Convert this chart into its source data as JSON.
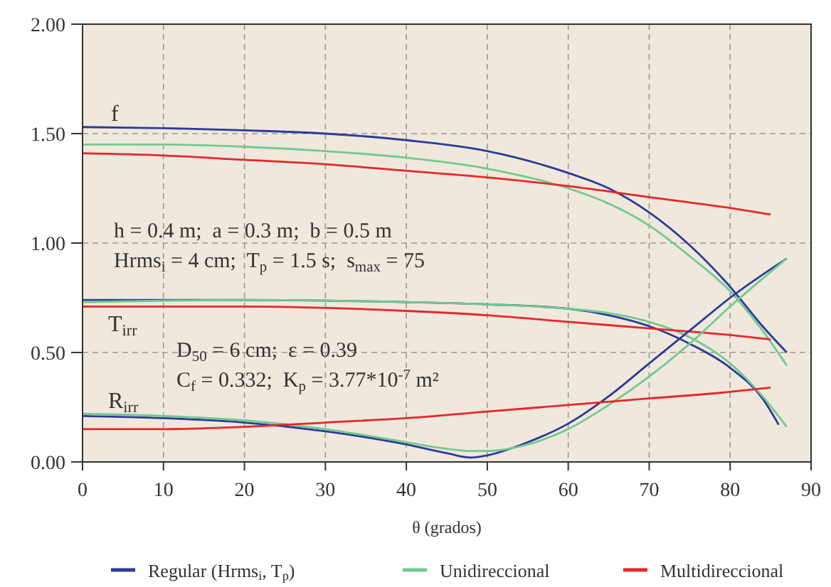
{
  "chart_data": {
    "type": "line",
    "xlabel": "θ (grados)",
    "xlim": [
      0,
      90
    ],
    "xticks": [
      0,
      10,
      20,
      30,
      40,
      50,
      60,
      70,
      80,
      90
    ],
    "ylim": [
      0,
      2
    ],
    "yticks": [
      {
        "value": 0,
        "label": "0.00"
      },
      {
        "value": 0.5,
        "label": "0.50"
      },
      {
        "value": 1,
        "label": "1.00"
      },
      {
        "value": 1.5,
        "label": "1.50"
      },
      {
        "value": 2,
        "label": "2.00"
      }
    ],
    "grid": true,
    "legend": "bottom",
    "series": [
      {
        "name": "Regular (Hrms$_{i}$, T$_{p}$)",
        "color": "#2b3a9a",
        "x": [
          0,
          10,
          20,
          30,
          40,
          50,
          60,
          65,
          70,
          75,
          80,
          84,
          87
        ],
        "values": [
          1.53,
          1.525,
          1.515,
          1.5,
          1.47,
          1.42,
          1.32,
          1.25,
          1.14,
          0.99,
          0.8,
          0.62,
          0.5
        ]
      },
      {
        "name": "Unidireccional",
        "color": "#72c98f",
        "x": [
          0,
          10,
          20,
          30,
          40,
          50,
          60,
          65,
          70,
          75,
          80,
          84,
          87
        ],
        "values": [
          1.45,
          1.45,
          1.44,
          1.42,
          1.39,
          1.34,
          1.25,
          1.18,
          1.08,
          0.94,
          0.78,
          0.6,
          0.44
        ]
      },
      {
        "name": "Multidireccional",
        "color": "#e8262b",
        "x": [
          0,
          10,
          20,
          30,
          40,
          50,
          60,
          70,
          80,
          85
        ],
        "values": [
          1.41,
          1.4,
          1.38,
          1.36,
          1.33,
          1.3,
          1.26,
          1.21,
          1.16,
          1.13
        ]
      },
      {
        "color": "#2b3a9a",
        "x": [
          0,
          20,
          40,
          50,
          60,
          65,
          70,
          75,
          80,
          84,
          86
        ],
        "values": [
          0.74,
          0.74,
          0.73,
          0.72,
          0.7,
          0.67,
          0.62,
          0.54,
          0.43,
          0.29,
          0.17
        ]
      },
      {
        "color": "#72c98f",
        "x": [
          0,
          20,
          40,
          50,
          60,
          65,
          70,
          75,
          80,
          84,
          87
        ],
        "values": [
          0.73,
          0.74,
          0.73,
          0.72,
          0.7,
          0.68,
          0.64,
          0.57,
          0.45,
          0.3,
          0.16
        ]
      },
      {
        "color": "#e8262b",
        "x": [
          0,
          20,
          40,
          50,
          60,
          70,
          80,
          85
        ],
        "values": [
          0.71,
          0.71,
          0.69,
          0.67,
          0.64,
          0.61,
          0.58,
          0.56
        ]
      },
      {
        "color": "#2b3a9a",
        "x": [
          0,
          10,
          20,
          30,
          40,
          45,
          48,
          50,
          55,
          60,
          65,
          70,
          75,
          80,
          87
        ],
        "values": [
          0.21,
          0.2,
          0.18,
          0.14,
          0.08,
          0.04,
          0.02,
          0.03,
          0.09,
          0.175,
          0.3,
          0.45,
          0.6,
          0.75,
          0.93
        ]
      },
      {
        "color": "#72c98f",
        "x": [
          0,
          10,
          20,
          30,
          40,
          45,
          48,
          50,
          55,
          60,
          65,
          70,
          75,
          80,
          87
        ],
        "values": [
          0.22,
          0.21,
          0.19,
          0.15,
          0.09,
          0.06,
          0.05,
          0.05,
          0.08,
          0.15,
          0.26,
          0.39,
          0.54,
          0.71,
          0.93
        ]
      },
      {
        "color": "#e8262b",
        "x": [
          0,
          10,
          20,
          30,
          40,
          50,
          60,
          70,
          80,
          85
        ],
        "values": [
          0.15,
          0.15,
          0.16,
          0.18,
          0.2,
          0.23,
          0.26,
          0.29,
          0.32,
          0.34
        ]
      }
    ],
    "annotations": [
      "f",
      "T$_{irr}$",
      "R$_{irr}$",
      "h = 0.4 m;  a = 0.3 m;  b = 0.5 m",
      "Hrms$_{i}$ = 4 cm;  T$_{p}$ = 1.5 s;  s$_{max}$ = 75",
      "D$_{50}$ = 6 cm;  ε = 0.39",
      "C$_{f}$ = 0.332;  K$_{p}$ = 3.77*10$^{-7}$ m²"
    ]
  }
}
